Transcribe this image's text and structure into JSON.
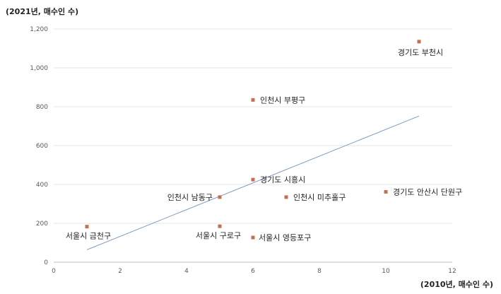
{
  "chart_data": {
    "type": "scatter",
    "title": "",
    "xlabel": "(2010년, 매수인 수)",
    "ylabel": "(2021년, 매수인 수)",
    "xlim": [
      0,
      12
    ],
    "ylim": [
      0,
      1200
    ],
    "x_ticks": [
      "0",
      "2",
      "4",
      "6",
      "8",
      "10",
      "12"
    ],
    "y_ticks": [
      "0",
      "200",
      "400",
      "600",
      "800",
      "1,000",
      "1,200"
    ],
    "grid": "horizontal",
    "colors": {
      "point": "#c0714f",
      "trend": "#7f9cc0",
      "grid": "#e6e6e6"
    },
    "points": [
      {
        "label": "경기도 부천시",
        "x": 11,
        "y": 1135
      },
      {
        "label": "인천시 부평구",
        "x": 6,
        "y": 835
      },
      {
        "label": "경기도 시흥시",
        "x": 6,
        "y": 425
      },
      {
        "label": "경기도 안산시 단원구",
        "x": 10,
        "y": 362
      },
      {
        "label": "인천시 미추홀구",
        "x": 7,
        "y": 335
      },
      {
        "label": "인천시 남동구",
        "x": 5,
        "y": 335
      },
      {
        "label": "서울시 금천구",
        "x": 1,
        "y": 183
      },
      {
        "label": "서울시 구로구",
        "x": 5,
        "y": 185
      },
      {
        "label": "서울시 영등포구",
        "x": 6,
        "y": 127
      }
    ],
    "trendline": {
      "x": [
        1,
        11
      ],
      "y": [
        64,
        752
      ]
    }
  }
}
